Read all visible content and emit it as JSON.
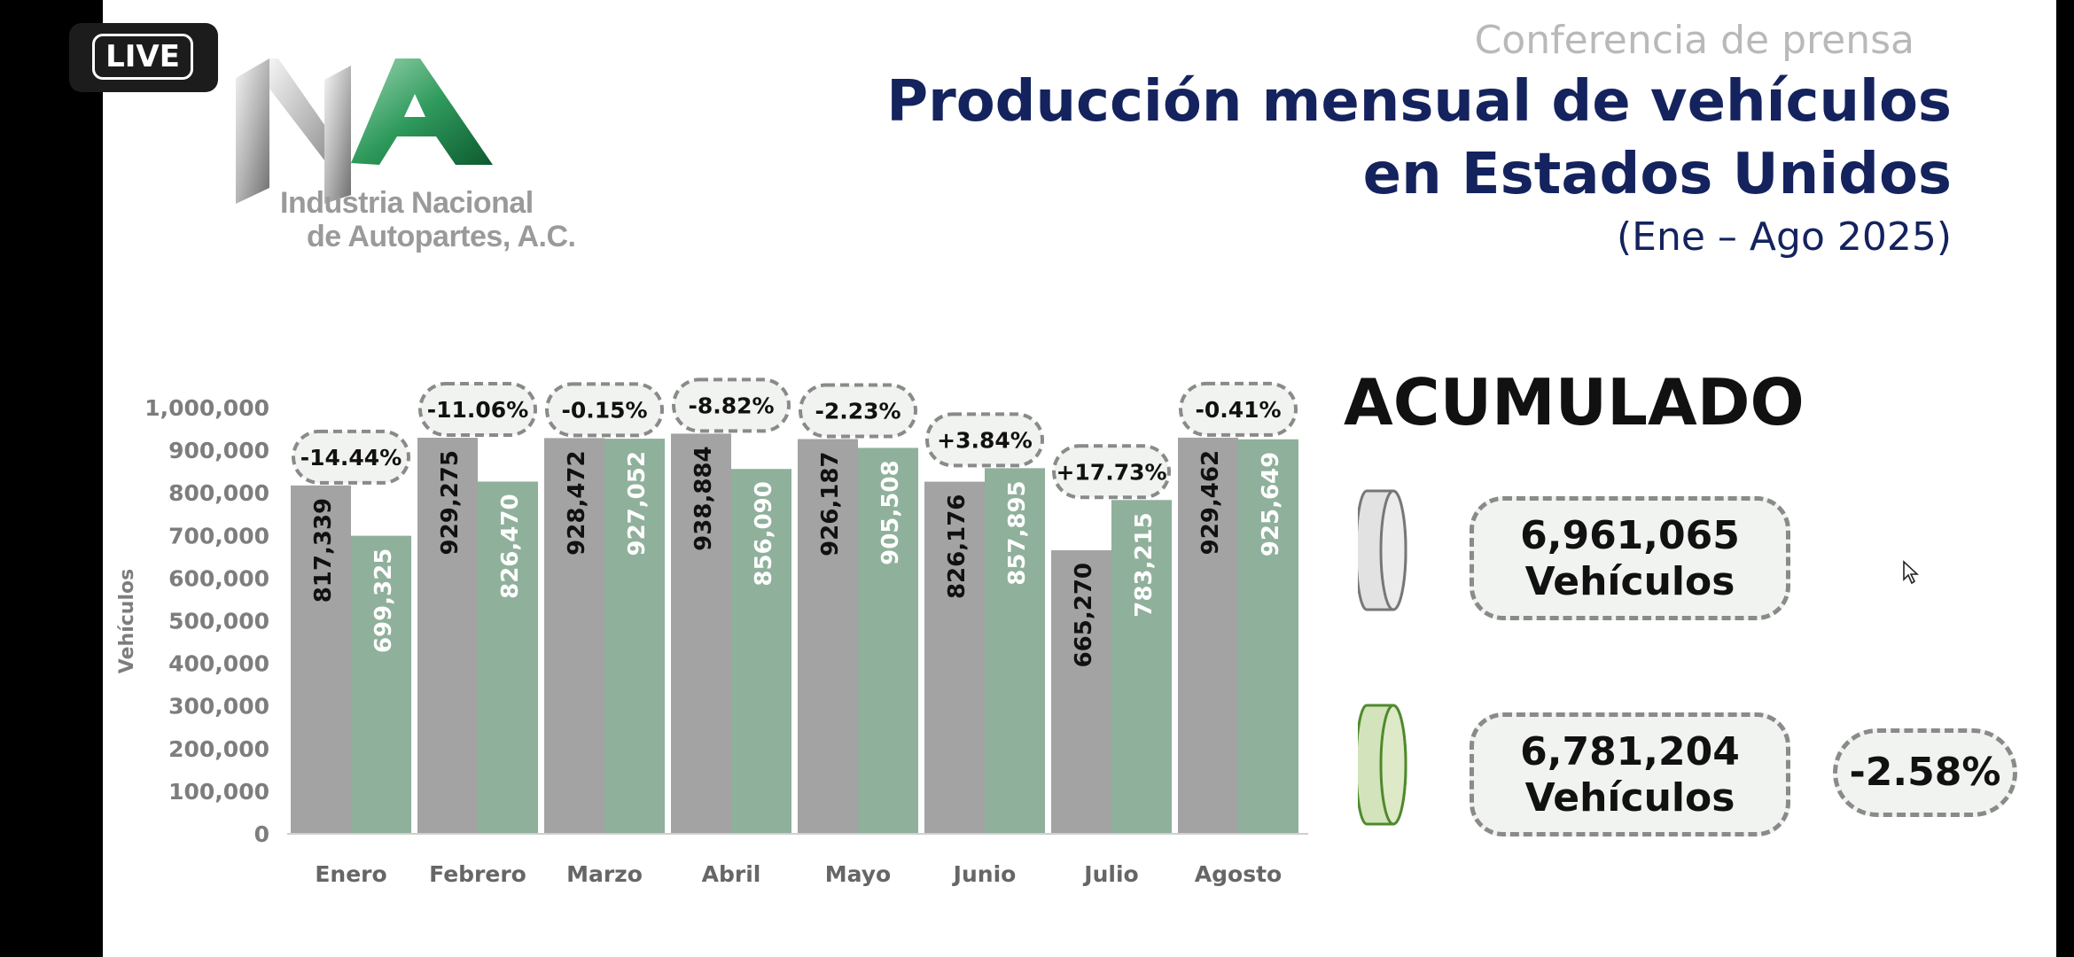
{
  "badge": {
    "label": "LIVE"
  },
  "logo": {
    "line1": "Industria Nacional",
    "line2": "de Autopartes, A.C."
  },
  "header": {
    "kicker": "Conferencia de prensa",
    "title_line1": "Producción mensual de vehículos",
    "title_line2": "en Estados Unidos",
    "subtitle": "(Ene – Ago 2025)"
  },
  "chart_data": {
    "type": "bar",
    "categories": [
      "Enero",
      "Febrero",
      "Marzo",
      "Abril",
      "Mayo",
      "Junio",
      "Julio",
      "Agosto"
    ],
    "series": [
      {
        "values": [
          817339,
          929275,
          928472,
          938884,
          926187,
          826176,
          665270,
          929462
        ],
        "labels": [
          "817,339",
          "929,275",
          "928,472",
          "938,884",
          "926,187",
          "826,176",
          "665,270",
          "929,462"
        ],
        "color": "#a3a3a3"
      },
      {
        "values": [
          699325,
          826470,
          927052,
          856090,
          905508,
          857895,
          783215,
          925649
        ],
        "labels": [
          "699,325",
          "826,470",
          "927,052",
          "856,090",
          "905,508",
          "857,895",
          "783,215",
          "925,649"
        ],
        "color": "#8fb09b"
      }
    ],
    "changes": [
      "-14.44%",
      "-11.06%",
      "-0.15%",
      "-8.82%",
      "-2.23%",
      "+3.84%",
      "+17.73%",
      "-0.41%"
    ],
    "ylabel": "Vehículos",
    "ylim": [
      0,
      1000000
    ],
    "yticks": [
      "0",
      "100,000",
      "200,000",
      "300,000",
      "400,000",
      "500,000",
      "600,000",
      "700,000",
      "800,000",
      "900,000",
      "1,000,000"
    ],
    "grid": false
  },
  "accumulated": {
    "title": "ACUMULADO",
    "total_2024_value": "6,961,065",
    "total_2024_unit": "Vehículos",
    "total_2025_value": "6,781,204",
    "total_2025_unit": "Vehículos",
    "change": "-2.58%",
    "icon_2024": "gray-cylinder-icon",
    "icon_2025": "green-cylinder-icon"
  }
}
